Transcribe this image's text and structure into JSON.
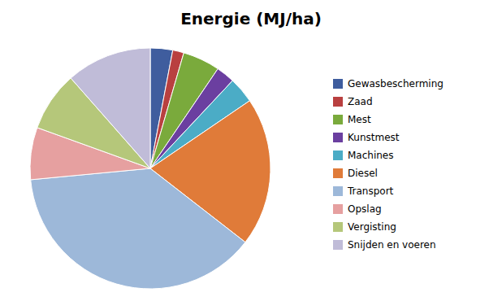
{
  "chart_data": {
    "type": "pie",
    "title": "Energie (MJ/ha)",
    "categories": [
      "Gewasbescherming",
      "Zaad",
      "Mest",
      "Kunstmest",
      "Machines",
      "Diesel",
      "Transport",
      "Opslag",
      "Vergisting",
      "Snijden en voeren"
    ],
    "values": [
      3,
      1.5,
      5,
      2.5,
      3.5,
      20,
      38,
      7,
      8,
      11.5
    ],
    "colors": [
      "#3f5d9e",
      "#b94040",
      "#7aaa3c",
      "#6b3fa0",
      "#4bacc6",
      "#e07b39",
      "#9db8d9",
      "#e6a0a0",
      "#b5c77a",
      "#c0bcd8"
    ],
    "legend": "right"
  }
}
